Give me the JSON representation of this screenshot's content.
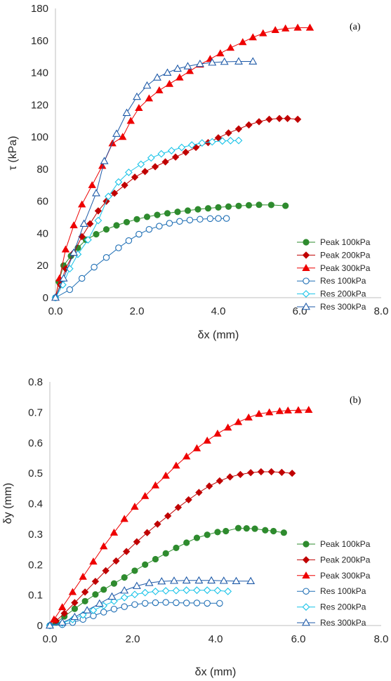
{
  "chart_data": [
    {
      "type": "line",
      "panel_label": "(a)",
      "xlabel": "δx (mm)",
      "ylabel": "τ (kPa)",
      "xlim": [
        0,
        8
      ],
      "ylim": [
        0,
        180
      ],
      "xticks": [
        "0.0",
        "2.0",
        "4.0",
        "6.0",
        "8.0"
      ],
      "yticks": [
        "0",
        "20",
        "40",
        "60",
        "80",
        "100",
        "120",
        "140",
        "160",
        "180"
      ],
      "grid": false,
      "legend": "right",
      "series": [
        {
          "name": "Peak 100kPa",
          "color": "#2e8b2e",
          "marker": "circle-filled",
          "x": [
            0,
            0.08,
            0.2,
            0.38,
            0.55,
            0.75,
            1.0,
            1.25,
            1.5,
            1.75,
            2.0,
            2.25,
            2.5,
            2.75,
            3.0,
            3.25,
            3.5,
            3.75,
            4.0,
            4.25,
            4.5,
            4.75,
            5.0,
            5.3,
            5.65
          ],
          "y": [
            0,
            10,
            20,
            26,
            31,
            36,
            39.5,
            42.5,
            45,
            47,
            48.8,
            50.3,
            51.5,
            52.5,
            53.4,
            54.2,
            55,
            55.6,
            56.2,
            56.7,
            57.1,
            57.5,
            57.8,
            57.7,
            57.2
          ]
        },
        {
          "name": "Peak 200kPa",
          "color": "#c00000",
          "marker": "diamond-filled",
          "x": [
            0,
            0.12,
            0.25,
            0.45,
            0.65,
            0.85,
            1.05,
            1.25,
            1.45,
            1.7,
            1.95,
            2.2,
            2.45,
            2.7,
            2.95,
            3.2,
            3.45,
            3.75,
            4.0,
            4.25,
            4.5,
            4.75,
            5.0,
            5.25,
            5.5,
            5.7,
            5.95
          ],
          "y": [
            0,
            8,
            18,
            28,
            38,
            46,
            54,
            60,
            65,
            70,
            75,
            78.5,
            81.5,
            84.5,
            87.5,
            90.5,
            93.5,
            96.5,
            99.5,
            102.5,
            105,
            107.5,
            109.5,
            111,
            111.5,
            111.5,
            111
          ]
        },
        {
          "name": "Peak 300kPa",
          "color": "#ee0000",
          "marker": "triangle-filled",
          "x": [
            0,
            0.1,
            0.25,
            0.45,
            0.65,
            0.9,
            1.15,
            1.4,
            1.65,
            1.85,
            2.05,
            2.3,
            2.55,
            2.8,
            3.05,
            3.3,
            3.55,
            3.8,
            4.05,
            4.3,
            4.6,
            4.85,
            5.1,
            5.4,
            5.65,
            5.95,
            6.25
          ],
          "y": [
            0,
            12,
            30,
            45,
            58,
            70,
            82,
            96,
            100,
            110,
            118,
            124,
            129,
            133,
            137,
            141,
            145,
            148.5,
            152,
            155.5,
            159,
            162,
            164.5,
            166.5,
            167.5,
            168,
            168
          ]
        },
        {
          "name": "Res 100kPa",
          "color": "#1f6fb5",
          "marker": "circle-open",
          "x": [
            0,
            0.35,
            0.65,
            0.95,
            1.25,
            1.55,
            1.8,
            2.05,
            2.3,
            2.55,
            2.8,
            3.05,
            3.3,
            3.55,
            3.8,
            4.0,
            4.2
          ],
          "y": [
            0,
            5,
            12,
            19,
            25,
            31,
            35.5,
            39.5,
            42.5,
            44.5,
            46.3,
            47.5,
            48.3,
            48.8,
            49.2,
            49.3,
            49.3
          ]
        },
        {
          "name": "Res 200kPa",
          "color": "#19c3e8",
          "marker": "diamond-open",
          "x": [
            0,
            0.18,
            0.35,
            0.55,
            0.8,
            1.05,
            1.3,
            1.55,
            1.8,
            2.1,
            2.35,
            2.6,
            2.85,
            3.1,
            3.35,
            3.6,
            3.85,
            4.1,
            4.3,
            4.5
          ],
          "y": [
            0,
            8,
            18,
            27,
            36,
            48,
            63,
            72,
            78,
            83,
            87,
            89.5,
            91.5,
            93.5,
            95,
            96.3,
            97,
            97.5,
            97.7,
            97.8
          ]
        },
        {
          "name": "Res 300kPa",
          "color": "#1e5aa8",
          "marker": "triangle-open",
          "x": [
            0,
            0.2,
            0.45,
            0.7,
            1.0,
            1.2,
            1.5,
            1.75,
            2.0,
            2.25,
            2.5,
            2.75,
            3.0,
            3.25,
            3.55,
            3.85,
            4.15,
            4.5,
            4.85
          ],
          "y": [
            0,
            12,
            28,
            46,
            65,
            85,
            102,
            115,
            125,
            132,
            137,
            140,
            142.5,
            144,
            145.5,
            146.3,
            146.8,
            147,
            147
          ]
        }
      ]
    },
    {
      "type": "line",
      "panel_label": "(b)",
      "xlabel": "δx (mm)",
      "ylabel": "δy (mm)",
      "xlim": [
        0,
        8
      ],
      "ylim": [
        0,
        0.8
      ],
      "xticks": [
        "0.0",
        "2.0",
        "4.0",
        "6.0",
        "8.0"
      ],
      "yticks": [
        "0",
        "0.1",
        "0.2",
        "0.3",
        "0.4",
        "0.5",
        "0.6",
        "0.7",
        "0.8"
      ],
      "grid": false,
      "legend": "right",
      "series": [
        {
          "name": "Peak 100kPa",
          "color": "#2e8b2e",
          "marker": "circle-filled",
          "x": [
            0,
            0.15,
            0.35,
            0.6,
            0.85,
            1.1,
            1.3,
            1.55,
            1.8,
            2.05,
            2.3,
            2.55,
            2.8,
            3.05,
            3.3,
            3.55,
            3.8,
            4.05,
            4.25,
            4.55,
            4.75,
            4.95,
            5.2,
            5.4,
            5.65
          ],
          "y": [
            0,
            0.01,
            0.03,
            0.055,
            0.08,
            0.102,
            0.118,
            0.138,
            0.158,
            0.18,
            0.2,
            0.218,
            0.237,
            0.255,
            0.272,
            0.288,
            0.298,
            0.307,
            0.31,
            0.32,
            0.319,
            0.318,
            0.313,
            0.31,
            0.305
          ]
        },
        {
          "name": "Peak 200kPa",
          "color": "#c00000",
          "marker": "diamond-filled",
          "x": [
            0,
            0.15,
            0.35,
            0.6,
            0.85,
            1.1,
            1.35,
            1.6,
            1.85,
            2.1,
            2.35,
            2.6,
            2.85,
            3.1,
            3.35,
            3.6,
            3.85,
            4.1,
            4.35,
            4.6,
            4.85,
            5.1,
            5.35,
            5.6,
            5.85
          ],
          "y": [
            0,
            0.015,
            0.04,
            0.075,
            0.11,
            0.145,
            0.18,
            0.212,
            0.243,
            0.275,
            0.305,
            0.333,
            0.36,
            0.388,
            0.413,
            0.437,
            0.458,
            0.475,
            0.488,
            0.496,
            0.502,
            0.505,
            0.505,
            0.503,
            0.5
          ]
        },
        {
          "name": "Peak 300kPa",
          "color": "#ee0000",
          "marker": "triangle-filled",
          "x": [
            0,
            0.1,
            0.3,
            0.55,
            0.8,
            1.05,
            1.3,
            1.55,
            1.8,
            2.05,
            2.3,
            2.55,
            2.8,
            3.05,
            3.3,
            3.55,
            3.8,
            4.05,
            4.3,
            4.55,
            4.8,
            5.05,
            5.3,
            5.55,
            5.75,
            6.0,
            6.25
          ],
          "y": [
            0,
            0.02,
            0.06,
            0.11,
            0.16,
            0.21,
            0.26,
            0.305,
            0.35,
            0.39,
            0.425,
            0.46,
            0.492,
            0.525,
            0.555,
            0.582,
            0.607,
            0.63,
            0.65,
            0.668,
            0.683,
            0.695,
            0.7,
            0.704,
            0.706,
            0.707,
            0.708
          ]
        },
        {
          "name": "Res 100kPa",
          "color": "#1f6fb5",
          "marker": "circle-open",
          "x": [
            0,
            0.3,
            0.55,
            0.8,
            1.05,
            1.3,
            1.55,
            1.8,
            2.05,
            2.3,
            2.55,
            2.8,
            3.05,
            3.3,
            3.55,
            3.8,
            4.1
          ],
          "y": [
            0,
            0.003,
            0.01,
            0.02,
            0.032,
            0.044,
            0.054,
            0.062,
            0.069,
            0.073,
            0.075,
            0.076,
            0.075,
            0.074,
            0.074,
            0.073,
            0.073
          ]
        },
        {
          "name": "Res 200kPa",
          "color": "#19c3e8",
          "marker": "diamond-open",
          "x": [
            0,
            0.3,
            0.55,
            0.8,
            1.05,
            1.3,
            1.55,
            1.8,
            2.05,
            2.3,
            2.55,
            2.8,
            3.05,
            3.3,
            3.55,
            3.8,
            4.05,
            4.3
          ],
          "y": [
            0,
            0.008,
            0.02,
            0.035,
            0.05,
            0.065,
            0.08,
            0.092,
            0.102,
            0.108,
            0.112,
            0.114,
            0.115,
            0.116,
            0.116,
            0.116,
            0.115,
            0.112
          ]
        },
        {
          "name": "Res 300kPa",
          "color": "#1e5aa8",
          "marker": "triangle-open",
          "x": [
            0,
            0.3,
            0.6,
            0.9,
            1.2,
            1.5,
            1.8,
            2.1,
            2.4,
            2.7,
            3.0,
            3.3,
            3.6,
            3.9,
            4.2,
            4.5,
            4.85
          ],
          "y": [
            0,
            0.01,
            0.028,
            0.05,
            0.072,
            0.095,
            0.115,
            0.13,
            0.14,
            0.145,
            0.147,
            0.148,
            0.148,
            0.148,
            0.147,
            0.146,
            0.146
          ]
        }
      ]
    }
  ]
}
